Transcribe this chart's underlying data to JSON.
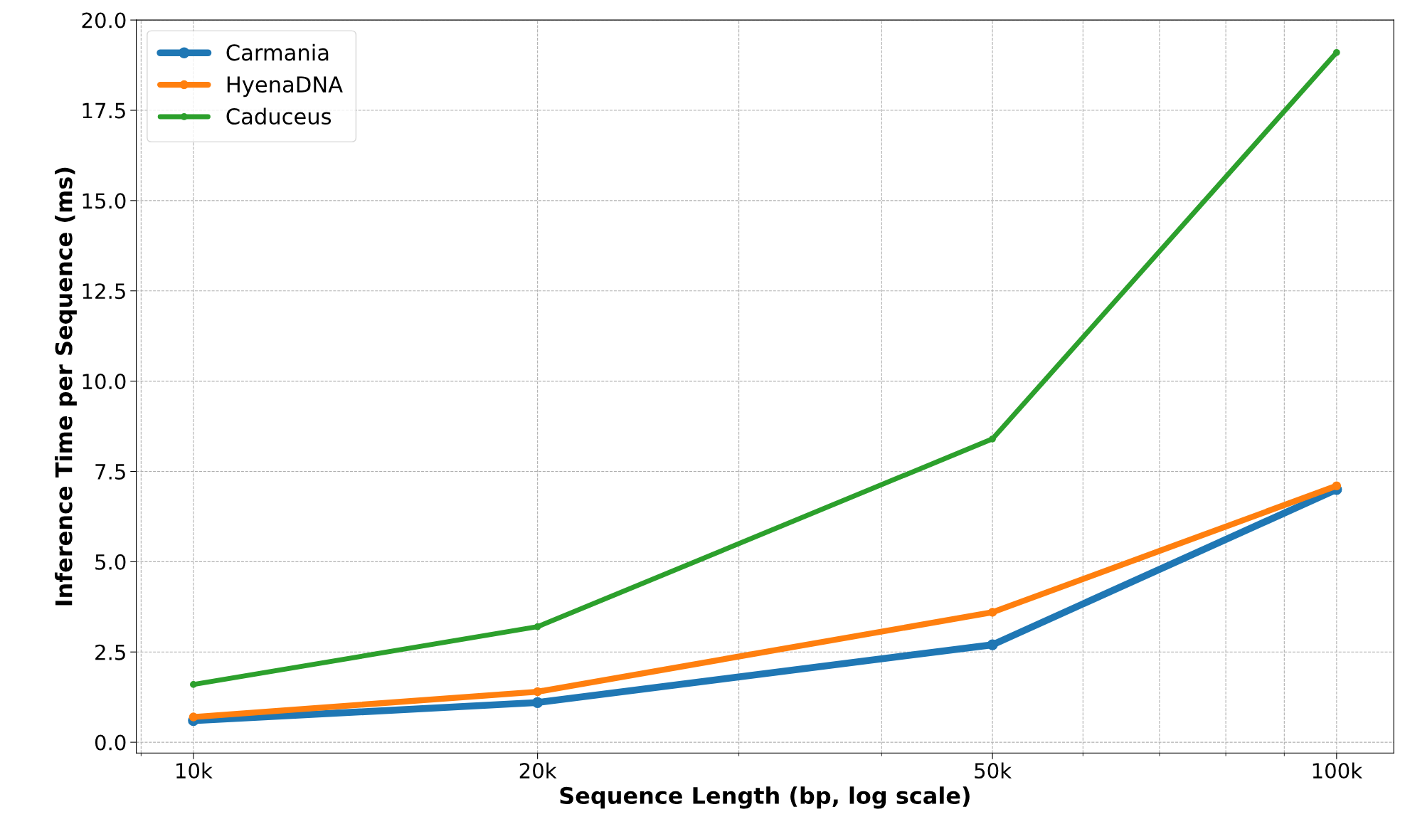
{
  "chart_data": {
    "type": "line",
    "xlabel": "Sequence Length (bp, log scale)",
    "ylabel": "Inference Time per Sequence (ms)",
    "x": [
      10000,
      20000,
      50000,
      100000
    ],
    "series": [
      {
        "name": "Carmania",
        "color": "#1f77b4",
        "values": [
          0.6,
          1.1,
          2.7,
          7.0
        ]
      },
      {
        "name": "HyenaDNA",
        "color": "#ff7f0e",
        "values": [
          0.7,
          1.4,
          3.6,
          7.1
        ]
      },
      {
        "name": "Caduceus",
        "color": "#2ca02c",
        "values": [
          1.6,
          3.2,
          8.4,
          19.1
        ]
      }
    ],
    "log": "x",
    "xlim": [
      8913,
      112202
    ],
    "xticks": [
      {
        "value": 10000,
        "label": "10k"
      },
      {
        "value": 20000,
        "label": "20k"
      },
      {
        "value": 50000,
        "label": "50k"
      },
      {
        "value": 100000,
        "label": "100k"
      }
    ],
    "ylim": [
      -0.3,
      20.0
    ],
    "yticks": [
      {
        "value": 0,
        "label": "0.0"
      },
      {
        "value": 2.5,
        "label": "2.5"
      },
      {
        "value": 5,
        "label": "5.0"
      },
      {
        "value": 7.5,
        "label": "7.5"
      },
      {
        "value": 10,
        "label": "10.0"
      },
      {
        "value": 12.5,
        "label": "12.5"
      },
      {
        "value": 15,
        "label": "15.0"
      },
      {
        "value": 17.5,
        "label": "17.5"
      },
      {
        "value": 20,
        "label": "20.0"
      }
    ],
    "grid": true,
    "legend": "top left",
    "marker": "circle",
    "line_style": "solid"
  }
}
